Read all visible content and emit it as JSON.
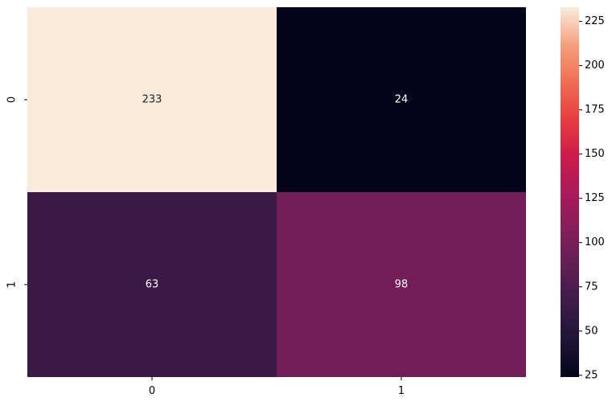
{
  "chart_data": {
    "type": "heatmap",
    "title": "",
    "xlabel": "",
    "ylabel": "",
    "x_categories": [
      "0",
      "1"
    ],
    "y_categories": [
      "0",
      "1"
    ],
    "values": [
      [
        233,
        24
      ],
      [
        63,
        98
      ]
    ],
    "annotations": [
      [
        "233",
        "24"
      ],
      [
        "63",
        "98"
      ]
    ],
    "colormap": "rocket",
    "colorbar": {
      "range": [
        24,
        233
      ],
      "ticks": [
        25,
        50,
        75,
        100,
        125,
        150,
        175,
        200,
        225
      ],
      "tick_labels": [
        "25",
        "50",
        "75",
        "100",
        "125",
        "150",
        "175",
        "200",
        "225"
      ],
      "placement": "right"
    },
    "grid": false
  }
}
